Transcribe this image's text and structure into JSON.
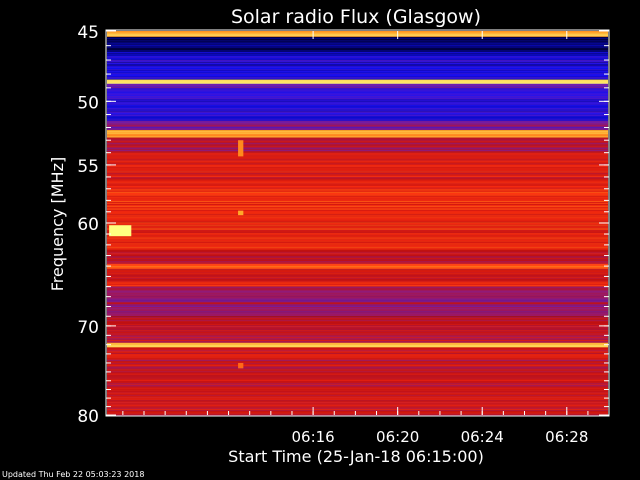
{
  "chart_data": {
    "type": "heatmap",
    "title": "Solar radio Flux (Glasgow)",
    "xlabel": "Start Time (25-Jan-18 06:15:00)",
    "ylabel": "Frequency [MHz]",
    "x_range_minutes": [
      6.25,
      29.95
    ],
    "y_range_mhz": [
      45,
      80
    ],
    "y_scale": "log",
    "x_ticks": [
      {
        "label": "06:16",
        "minute": 16
      },
      {
        "label": "06:20",
        "minute": 20
      },
      {
        "label": "06:24",
        "minute": 24
      },
      {
        "label": "06:28",
        "minute": 28
      }
    ],
    "y_ticks": [
      {
        "label": "45",
        "mhz": 45
      },
      {
        "label": "50",
        "mhz": 50
      },
      {
        "label": "55",
        "mhz": 55
      },
      {
        "label": "60",
        "mhz": 60
      },
      {
        "label": "70",
        "mhz": 70
      },
      {
        "label": "80",
        "mhz": 80
      }
    ],
    "colormap": [
      "#000030",
      "#1010ff",
      "#8020a0",
      "#c01010",
      "#ff3010",
      "#ffa020",
      "#ffff80"
    ],
    "bands": [
      {
        "from_mhz": 45.0,
        "to_mhz": 45.4,
        "level": 0.85
      },
      {
        "from_mhz": 45.4,
        "to_mhz": 46.6,
        "level": 0.05
      },
      {
        "from_mhz": 46.6,
        "to_mhz": 48.4,
        "level": 0.15
      },
      {
        "from_mhz": 48.4,
        "to_mhz": 48.7,
        "level": 0.95
      },
      {
        "from_mhz": 48.7,
        "to_mhz": 49.0,
        "level": 0.3
      },
      {
        "from_mhz": 49.0,
        "to_mhz": 51.5,
        "level": 0.2
      },
      {
        "from_mhz": 51.5,
        "to_mhz": 52.2,
        "level": 0.35
      },
      {
        "from_mhz": 52.2,
        "to_mhz": 52.8,
        "level": 0.85
      },
      {
        "from_mhz": 52.8,
        "to_mhz": 54.0,
        "level": 0.45
      },
      {
        "from_mhz": 54.0,
        "to_mhz": 57.0,
        "level": 0.58
      },
      {
        "from_mhz": 57.0,
        "to_mhz": 62.5,
        "level": 0.62
      },
      {
        "from_mhz": 62.5,
        "to_mhz": 63.8,
        "level": 0.5
      },
      {
        "from_mhz": 63.8,
        "to_mhz": 64.3,
        "level": 0.7
      },
      {
        "from_mhz": 64.3,
        "to_mhz": 65.5,
        "level": 0.52
      },
      {
        "from_mhz": 65.5,
        "to_mhz": 66.0,
        "level": 0.62
      },
      {
        "from_mhz": 66.0,
        "to_mhz": 69.0,
        "level": 0.4
      },
      {
        "from_mhz": 69.0,
        "to_mhz": 71.8,
        "level": 0.5
      },
      {
        "from_mhz": 71.8,
        "to_mhz": 72.3,
        "level": 0.9
      },
      {
        "from_mhz": 72.3,
        "to_mhz": 80.0,
        "level": 0.52
      }
    ],
    "features": [
      {
        "kind": "burst",
        "minute_from": 6.35,
        "minute_to": 7.4,
        "mhz_from": 60.2,
        "mhz_to": 61.2,
        "level": 1.0
      },
      {
        "kind": "spike",
        "minute_from": 12.45,
        "minute_to": 12.7,
        "mhz_from": 53.0,
        "mhz_to": 54.3,
        "level": 0.8
      },
      {
        "kind": "spike",
        "minute_from": 12.45,
        "minute_to": 12.7,
        "mhz_from": 58.9,
        "mhz_to": 59.3,
        "level": 0.85
      },
      {
        "kind": "spike",
        "minute_from": 12.45,
        "minute_to": 12.7,
        "mhz_from": 74.0,
        "mhz_to": 74.6,
        "level": 0.75
      }
    ]
  },
  "footer": {
    "updated": "Updated Thu Feb 22 05:03:23 2018"
  }
}
